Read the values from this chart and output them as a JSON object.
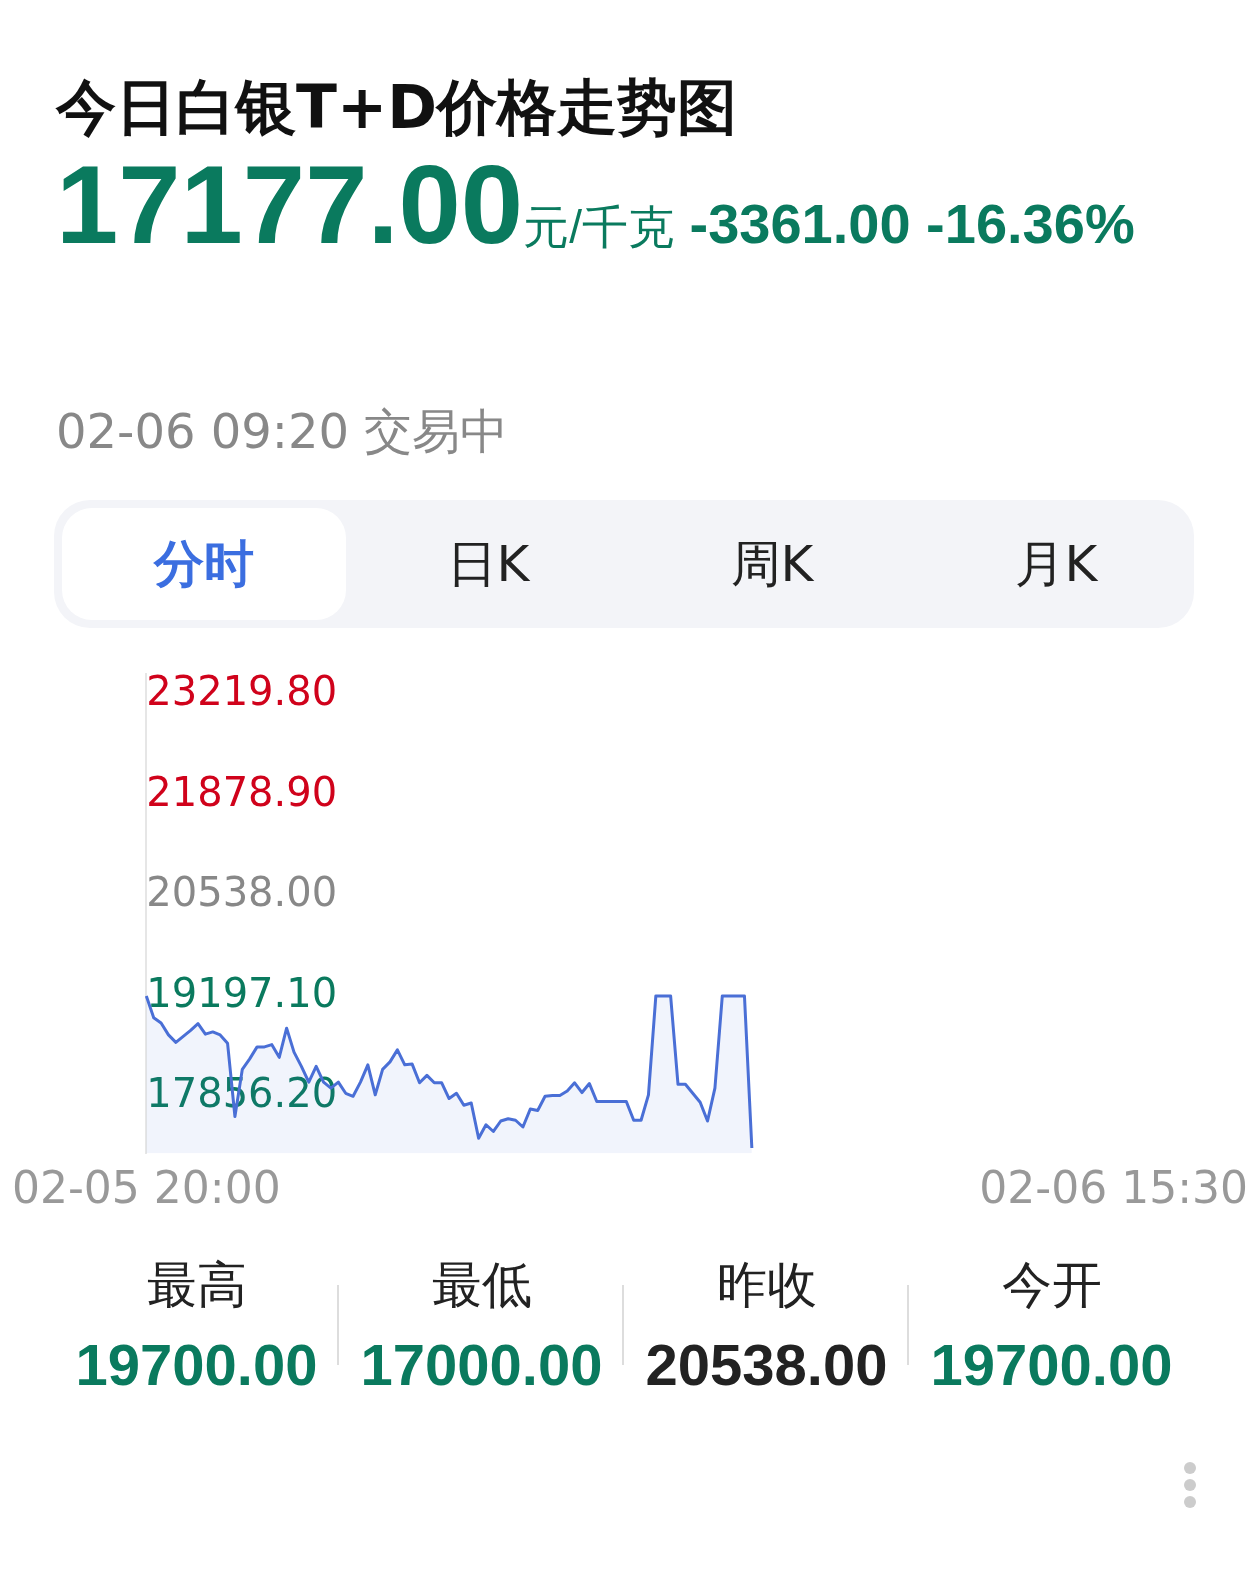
{
  "chart_data": {
    "type": "area",
    "title": "今日白银T+D价格走势图",
    "subtitle": "17177.00元/千克 -3361.00 -16.36%",
    "annotations": [
      "02-06 09:20 交易中",
      "分时",
      "日K",
      "周K",
      "月K",
      "最高",
      "19700.00",
      "最低",
      "17000.00",
      "昨收",
      "20538.00",
      "今开",
      "19700.00"
    ],
    "categories": [
      "02-05 20:00",
      null,
      null,
      null,
      null,
      null,
      null,
      null,
      null,
      null,
      null,
      null,
      null,
      null,
      null,
      null,
      null,
      null,
      null,
      null,
      null,
      null,
      null,
      null,
      null,
      null,
      null,
      null,
      null,
      null,
      null,
      null,
      null,
      null,
      null,
      null,
      null,
      null,
      null,
      null,
      null,
      null,
      null,
      null,
      null,
      null,
      null,
      null,
      null,
      null,
      null,
      null,
      null,
      null,
      null,
      null,
      null,
      null,
      null,
      null,
      null,
      null,
      null,
      null,
      null,
      null,
      null,
      null,
      null,
      null,
      null,
      null,
      null,
      null,
      null,
      null,
      null,
      null,
      null,
      null,
      null,
      null,
      null,
      null,
      null,
      null,
      null,
      null,
      null,
      null,
      null,
      null,
      null,
      null,
      null,
      null,
      null,
      null,
      null,
      null,
      null,
      null,
      null,
      null,
      null,
      null,
      null,
      null,
      null,
      null,
      null,
      null,
      null,
      null,
      null,
      null,
      null,
      null,
      null,
      null,
      null,
      null,
      null,
      null,
      null,
      null,
      null,
      null,
      null,
      null,
      null,
      "02-06 15:30"
    ],
    "series": [
      {
        "color": "#4a6fd6",
        "values": [
          19200,
          18910,
          18840,
          18680,
          18580,
          18660,
          18740,
          18830,
          18690,
          18720,
          18680,
          18570,
          17590,
          18220,
          18360,
          18520,
          18520,
          18550,
          18380,
          18770,
          18450,
          18260,
          18050,
          18260,
          18050,
          17970,
          18050,
          17900,
          17860,
          18050,
          18280,
          17880,
          18220,
          18320,
          18480,
          18280,
          18290,
          18040,
          18140,
          18040,
          18040,
          17830,
          17900,
          17740,
          17770,
          17300,
          17480,
          17390,
          17530,
          17560,
          17540,
          17450,
          17690,
          17670,
          17860,
          17870,
          17870,
          17930,
          18040,
          17910,
          18030,
          17790,
          17790,
          17790,
          17790,
          17790,
          17540,
          17540,
          17880,
          19200,
          19200,
          19200,
          18020,
          18020,
          17900,
          17780,
          17530,
          17970,
          19200,
          19200,
          19200,
          19200,
          17170,
          null,
          null,
          null,
          null,
          null,
          null,
          null,
          null,
          null,
          null,
          null,
          null,
          null,
          null,
          null,
          null,
          null,
          null,
          null,
          null,
          null,
          null,
          null,
          null,
          null,
          null,
          null,
          null,
          null,
          null,
          null,
          null,
          null,
          null,
          null,
          null,
          null,
          null,
          null,
          null,
          null,
          null,
          null,
          null,
          null,
          null,
          null,
          null,
          null
        ]
      }
    ],
    "ylim": [
      17100,
      23500
    ],
    "yticks": [
      {
        "value": 17856.2,
        "label": "17856.20"
      },
      {
        "value": 19197.1,
        "label": "19197.10"
      },
      {
        "value": 20538,
        "label": "20538.00"
      },
      {
        "value": 21878.9,
        "label": "21878.90"
      },
      {
        "value": 23219.8,
        "label": "23219.80"
      }
    ]
  }
}
